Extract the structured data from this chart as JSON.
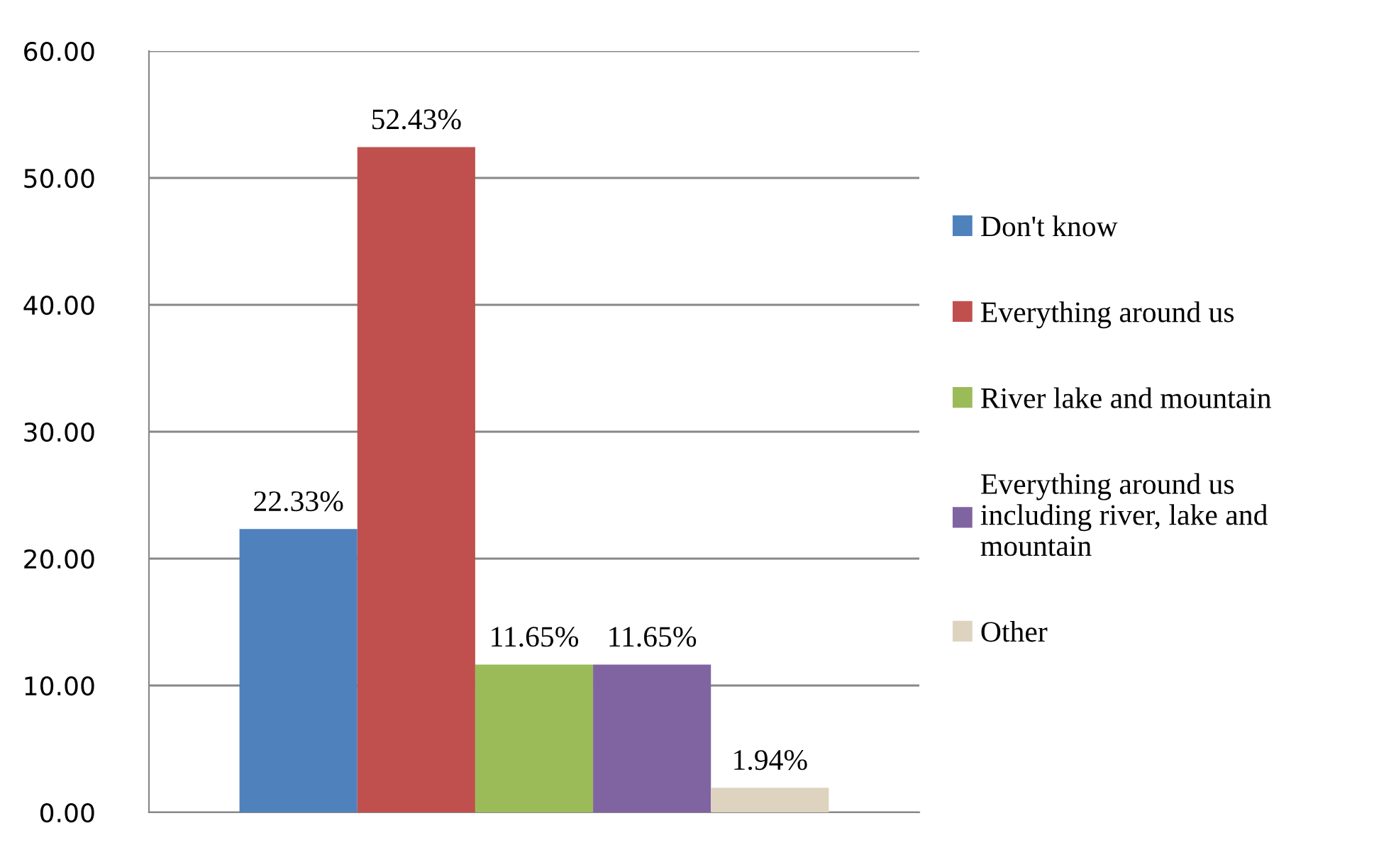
{
  "chart_data": {
    "type": "bar",
    "categories": [
      null
    ],
    "series": [
      {
        "name": "Don't know",
        "color": "#4f81bd",
        "values": [
          22.33
        ],
        "value_labels": [
          "22.33%"
        ]
      },
      {
        "name": "Everything around us",
        "color": "#c0504d",
        "values": [
          52.43
        ],
        "value_labels": [
          "52.43%"
        ]
      },
      {
        "name": "River lake and mountain",
        "color": "#9bbb59",
        "values": [
          11.65
        ],
        "value_labels": [
          "11.65%"
        ]
      },
      {
        "name": "Everything around us\nincluding river, lake and\nmountain",
        "color": "#8064a2",
        "values": [
          11.65
        ],
        "value_labels": [
          "11.65%"
        ]
      },
      {
        "name": "Other",
        "color": "#ddd3bf",
        "values": [
          1.94
        ],
        "value_labels": [
          "1.94%"
        ]
      }
    ],
    "ylim": [
      0,
      60
    ],
    "yticks": [
      {
        "value": 0,
        "label": "0.00"
      },
      {
        "value": 10,
        "label": "10.00"
      },
      {
        "value": 20,
        "label": "20.00"
      },
      {
        "value": 30,
        "label": "30.00"
      },
      {
        "value": 40,
        "label": "40.00"
      },
      {
        "value": 50,
        "label": "50.00"
      },
      {
        "value": 60,
        "label": "60.00"
      }
    ],
    "grid": "y",
    "legend": "right"
  }
}
